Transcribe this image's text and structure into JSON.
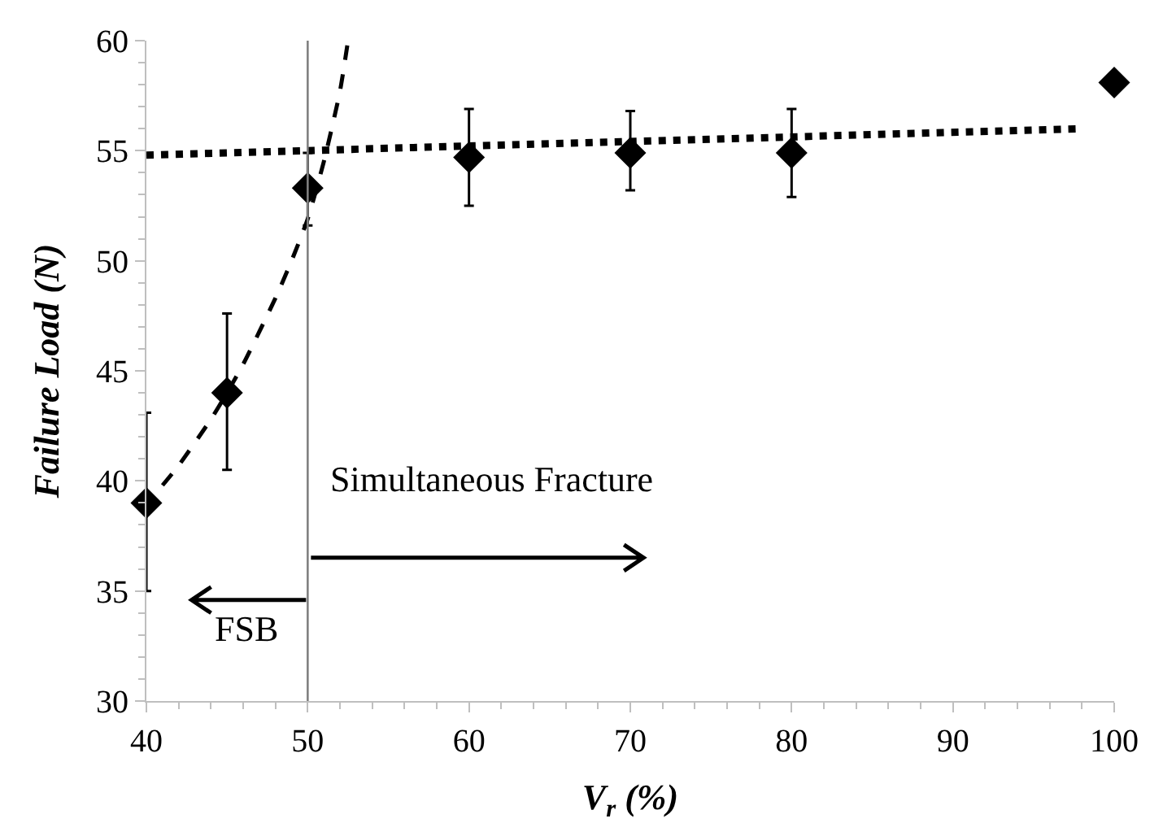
{
  "chart_data": {
    "type": "scatter",
    "xlabel": "V$_{r}$ (%)",
    "ylabel": "Failure Load (N)",
    "xlim": [
      40,
      100
    ],
    "xticks": [
      40,
      50,
      60,
      70,
      80,
      90,
      100
    ],
    "ylim": [
      30,
      60
    ],
    "yticks": [
      30,
      35,
      40,
      45,
      50,
      55,
      60
    ],
    "grid": false,
    "series": [
      {
        "color": "#000000",
        "marker": "diamond",
        "x": [
          40,
          45,
          50,
          60,
          70,
          80,
          100
        ],
        "values": [
          39.0,
          44.0,
          53.3,
          54.7,
          54.9,
          54.9,
          58.1
        ],
        "errors": [
          [
            35.0,
            43.1
          ],
          [
            40.5,
            47.6
          ],
          [
            51.6,
            54.9
          ],
          [
            52.5,
            56.9
          ],
          [
            53.2,
            56.8
          ],
          [
            52.9,
            56.9
          ],
          null
        ]
      },
      {
        "type": "line",
        "color": "#000000",
        "line_style": "dashed",
        "x": [
          41,
          42,
          44,
          45,
          46,
          48,
          49,
          50,
          51,
          52,
          52.5
        ],
        "values": [
          39.8,
          40.7,
          42.8,
          44.0,
          45.3,
          48.3,
          50.0,
          51.9,
          54.5,
          57.7,
          60.0
        ]
      },
      {
        "type": "line",
        "color": "#000000",
        "line_style": "dotted",
        "x": [
          40,
          98
        ],
        "values": [
          54.8,
          56.0
        ]
      }
    ],
    "ref_lines": [
      {
        "axis": "x",
        "value": 50,
        "color": "#808080"
      }
    ],
    "annotations": [
      "Simultaneous Fracture",
      "FSB"
    ]
  }
}
